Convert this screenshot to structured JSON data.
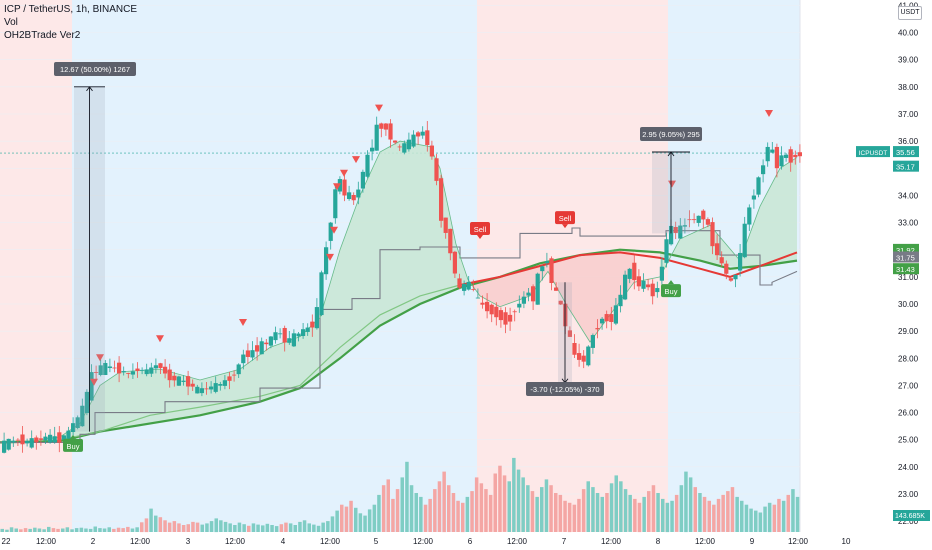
{
  "header": {
    "symbol_line": "ICP / TetherUS, 1h, BINANCE",
    "vol_label": "Vol",
    "indicator_label": "OH2BTrade Ver2",
    "currency": "USDT"
  },
  "colors": {
    "up": "#26a69a",
    "down": "#ef5350",
    "bg_buy": "#e3f2fd",
    "bg_sell": "#fde8e8",
    "ema_slow": "#43a047",
    "ema_red": "#e53935",
    "step_line": "#787b86",
    "cloud_green": "#c8e6d3",
    "cloud_red": "#f8cdcd",
    "axis_text": "#131722"
  },
  "chart_data": {
    "type": "candlestick",
    "ylim": [
      21.6,
      41.2
    ],
    "y_ticks": [
      22.0,
      23.0,
      24.0,
      25.0,
      26.0,
      27.0,
      28.0,
      29.0,
      30.0,
      31.0,
      32.0,
      33.0,
      34.0,
      35.0,
      36.0,
      37.0,
      38.0,
      39.0,
      40.0,
      41.0
    ],
    "x_ticks": [
      "22",
      "12:00",
      "2",
      "12:00",
      "3",
      "12:00",
      "4",
      "12:00",
      "5",
      "12:00",
      "6",
      "12:00",
      "7",
      "12:00",
      "8",
      "12:00",
      "9",
      "12:00",
      "10"
    ],
    "background_zones": [
      {
        "signal": "sell",
        "from": "22",
        "to": "1 18:00"
      },
      {
        "signal": "buy",
        "from": "1 18:00",
        "to": "6 03:00"
      },
      {
        "signal": "sell",
        "from": "6 03:00",
        "to": "8 06:00"
      },
      {
        "signal": "buy",
        "from": "8 06:00",
        "to": "9 12:00"
      }
    ],
    "price_path": [
      [
        0,
        24.7
      ],
      [
        10,
        24.9
      ],
      [
        20,
        25.0
      ],
      [
        30,
        24.9
      ],
      [
        40,
        25.0
      ],
      [
        50,
        25.1
      ],
      [
        60,
        25.0
      ],
      [
        70,
        25.2
      ],
      [
        75,
        25.6
      ],
      [
        80,
        25.7
      ],
      [
        88,
        26.4
      ],
      [
        92,
        27.2
      ],
      [
        96,
        27.5
      ],
      [
        100,
        27.6
      ],
      [
        110,
        27.7
      ],
      [
        120,
        27.6
      ],
      [
        130,
        27.4
      ],
      [
        140,
        27.6
      ],
      [
        150,
        27.5
      ],
      [
        160,
        27.8
      ],
      [
        165,
        27.6
      ],
      [
        170,
        27.3
      ],
      [
        180,
        27.2
      ],
      [
        190,
        27.1
      ],
      [
        200,
        26.8
      ],
      [
        210,
        26.9
      ],
      [
        220,
        27.0
      ],
      [
        230,
        27.2
      ],
      [
        240,
        27.6
      ],
      [
        245,
        28.2
      ],
      [
        250,
        28.1
      ],
      [
        260,
        28.4
      ],
      [
        270,
        28.6
      ],
      [
        280,
        29.0
      ],
      [
        290,
        28.6
      ],
      [
        300,
        28.9
      ],
      [
        310,
        29.1
      ],
      [
        318,
        29.4
      ],
      [
        322,
        30.5
      ],
      [
        326,
        31.6
      ],
      [
        330,
        32.4
      ],
      [
        334,
        33.3
      ],
      [
        338,
        34.3
      ],
      [
        342,
        34.6
      ],
      [
        346,
        34.0
      ],
      [
        350,
        34.1
      ],
      [
        356,
        33.8
      ],
      [
        362,
        34.4
      ],
      [
        368,
        35.2
      ],
      [
        374,
        35.8
      ],
      [
        378,
        36.4
      ],
      [
        382,
        36.6
      ],
      [
        388,
        36.5
      ],
      [
        394,
        36.1
      ],
      [
        400,
        35.7
      ],
      [
        406,
        35.8
      ],
      [
        412,
        36.0
      ],
      [
        418,
        36.2
      ],
      [
        424,
        36.4
      ],
      [
        430,
        35.9
      ],
      [
        436,
        35.2
      ],
      [
        440,
        34.3
      ],
      [
        444,
        33.0
      ],
      [
        450,
        32.5
      ],
      [
        456,
        31.3
      ],
      [
        462,
        30.5
      ],
      [
        468,
        30.8
      ],
      [
        474,
        30.6
      ],
      [
        480,
        30.1
      ],
      [
        490,
        29.8
      ],
      [
        500,
        29.6
      ],
      [
        510,
        29.3
      ],
      [
        518,
        29.9
      ],
      [
        524,
        30.1
      ],
      [
        530,
        30.5
      ],
      [
        536,
        30.2
      ],
      [
        542,
        31.3
      ],
      [
        548,
        31.8
      ],
      [
        552,
        31.1
      ],
      [
        556,
        30.6
      ],
      [
        562,
        30.0
      ],
      [
        566,
        29.5
      ],
      [
        570,
        29.0
      ],
      [
        576,
        28.1
      ],
      [
        582,
        28.0
      ],
      [
        588,
        27.9
      ],
      [
        594,
        28.8
      ],
      [
        600,
        29.2
      ],
      [
        606,
        29.6
      ],
      [
        612,
        29.3
      ],
      [
        618,
        29.8
      ],
      [
        624,
        30.5
      ],
      [
        628,
        31.0
      ],
      [
        634,
        31.4
      ],
      [
        640,
        30.6
      ],
      [
        646,
        30.8
      ],
      [
        652,
        30.5
      ],
      [
        658,
        30.3
      ],
      [
        662,
        31.0
      ],
      [
        668,
        32.3
      ],
      [
        674,
        32.8
      ],
      [
        680,
        32.6
      ],
      [
        686,
        32.9
      ],
      [
        692,
        33.2
      ],
      [
        698,
        33.0
      ],
      [
        704,
        33.4
      ],
      [
        710,
        32.9
      ],
      [
        716,
        32.1
      ],
      [
        722,
        31.6
      ],
      [
        728,
        31.2
      ],
      [
        734,
        30.7
      ],
      [
        740,
        31.4
      ],
      [
        746,
        32.6
      ],
      [
        750,
        33.4
      ],
      [
        756,
        34.1
      ],
      [
        760,
        34.5
      ],
      [
        764,
        34.9
      ],
      [
        768,
        35.7
      ],
      [
        772,
        35.9
      ],
      [
        776,
        35.4
      ],
      [
        780,
        35.1
      ],
      [
        786,
        35.6
      ],
      [
        792,
        35.3
      ],
      [
        797,
        35.5
      ]
    ],
    "series": [
      {
        "kind": "ema_slow",
        "points": [
          [
            0,
            24.9
          ],
          [
            60,
            24.95
          ],
          [
            100,
            25.3
          ],
          [
            200,
            25.9
          ],
          [
            260,
            26.4
          ],
          [
            300,
            26.9
          ],
          [
            340,
            28.0
          ],
          [
            380,
            29.2
          ],
          [
            420,
            30.0
          ],
          [
            460,
            30.6
          ],
          [
            500,
            31.0
          ],
          [
            540,
            31.5
          ],
          [
            580,
            31.8
          ],
          [
            620,
            32.0
          ],
          [
            660,
            31.9
          ],
          [
            700,
            31.6
          ],
          [
            730,
            31.3
          ],
          [
            760,
            31.4
          ],
          [
            797,
            31.6
          ]
        ]
      },
      {
        "kind": "ema_mid",
        "points": [
          [
            60,
            25.0
          ],
          [
            100,
            25.3
          ],
          [
            150,
            25.9
          ],
          [
            200,
            26.2
          ],
          [
            260,
            26.6
          ],
          [
            300,
            27.0
          ],
          [
            340,
            28.4
          ],
          [
            380,
            29.6
          ],
          [
            420,
            30.3
          ],
          [
            460,
            30.7
          ]
        ]
      },
      {
        "kind": "ema_red",
        "points": [
          [
            460,
            30.7
          ],
          [
            500,
            31.0
          ],
          [
            540,
            31.4
          ],
          [
            580,
            31.8
          ],
          [
            620,
            31.9
          ],
          [
            660,
            31.7
          ],
          [
            700,
            31.3
          ],
          [
            730,
            31.0
          ],
          [
            760,
            31.4
          ],
          [
            797,
            31.9
          ]
        ]
      },
      {
        "kind": "step_line",
        "points": [
          [
            0,
            24.9
          ],
          [
            80,
            24.9
          ],
          [
            80,
            25.2
          ],
          [
            95,
            25.2
          ],
          [
            95,
            26.0
          ],
          [
            165,
            26.0
          ],
          [
            165,
            26.4
          ],
          [
            260,
            26.4
          ],
          [
            260,
            26.9
          ],
          [
            320,
            26.9
          ],
          [
            320,
            29.8
          ],
          [
            352,
            29.8
          ],
          [
            352,
            30.2
          ],
          [
            380,
            30.2
          ],
          [
            380,
            32.0
          ],
          [
            420,
            32.0
          ],
          [
            420,
            32.1
          ],
          [
            460,
            32.1
          ],
          [
            460,
            31.7
          ],
          [
            520,
            31.7
          ],
          [
            520,
            32.6
          ],
          [
            572,
            32.6
          ],
          [
            572,
            32.8
          ],
          [
            580,
            32.8
          ],
          [
            580,
            32.5
          ],
          [
            666,
            32.5
          ],
          [
            666,
            32.7
          ],
          [
            720,
            32.7
          ],
          [
            720,
            31.8
          ],
          [
            760,
            31.8
          ],
          [
            760,
            30.7
          ],
          [
            772,
            30.7
          ],
          [
            772,
            30.8
          ],
          [
            797,
            31.2
          ]
        ]
      },
      {
        "kind": "fast_line",
        "points": [
          [
            40,
            25.0
          ],
          [
            60,
            25.1
          ],
          [
            80,
            25.6
          ],
          [
            100,
            27.0
          ],
          [
            120,
            27.5
          ],
          [
            160,
            27.6
          ],
          [
            200,
            27.2
          ],
          [
            240,
            27.6
          ],
          [
            270,
            28.4
          ],
          [
            300,
            28.8
          ],
          [
            320,
            29.5
          ],
          [
            340,
            32.0
          ],
          [
            360,
            34.0
          ],
          [
            380,
            35.6
          ],
          [
            400,
            36.0
          ],
          [
            430,
            35.8
          ],
          [
            440,
            35.0
          ],
          [
            456,
            32.2
          ],
          [
            468,
            30.9
          ],
          [
            480,
            30.3
          ],
          [
            500,
            29.9
          ],
          [
            530,
            30.3
          ],
          [
            548,
            31.2
          ],
          [
            566,
            30.0
          ],
          [
            590,
            28.6
          ],
          [
            610,
            29.6
          ],
          [
            634,
            30.8
          ],
          [
            660,
            31.0
          ],
          [
            680,
            32.4
          ],
          [
            710,
            32.9
          ],
          [
            740,
            31.6
          ],
          [
            760,
            33.6
          ],
          [
            780,
            35.0
          ],
          [
            797,
            35.4
          ]
        ]
      }
    ],
    "volume": {
      "axis_max": 300,
      "label": "143.685K",
      "bars": [
        8,
        6,
        12,
        9,
        7,
        10,
        8,
        11,
        9,
        7,
        13,
        10,
        8,
        9,
        12,
        7,
        10,
        11,
        9,
        8,
        14,
        10,
        9,
        12,
        8,
        11,
        10,
        13,
        9,
        12,
        25,
        35,
        60,
        42,
        38,
        30,
        24,
        28,
        22,
        18,
        20,
        26,
        24,
        19,
        22,
        28,
        35,
        30,
        26,
        22,
        18,
        24,
        20,
        16,
        22,
        19,
        17,
        21,
        18,
        15,
        20,
        24,
        22,
        18,
        26,
        30,
        22,
        19,
        16,
        24,
        28,
        40,
        55,
        70,
        65,
        80,
        62,
        48,
        42,
        58,
        70,
        95,
        120,
        135,
        85,
        110,
        140,
        180,
        120,
        100,
        90,
        70,
        85,
        110,
        130,
        155,
        120,
        100,
        80,
        75,
        90,
        105,
        140,
        125,
        110,
        95,
        150,
        170,
        145,
        130,
        190,
        160,
        140,
        120,
        105,
        90,
        115,
        135,
        120,
        100,
        95,
        80,
        75,
        70,
        85,
        110,
        130,
        115,
        100,
        90,
        100,
        125,
        145,
        130,
        110,
        95,
        85,
        75,
        90,
        105,
        120,
        100,
        85,
        75,
        80,
        95,
        120,
        155,
        140,
        115,
        100,
        90,
        80,
        70,
        85,
        95,
        105,
        115,
        90,
        80,
        70,
        60,
        55,
        50,
        65,
        75,
        70,
        85,
        80,
        95,
        110,
        90
      ]
    },
    "price_labels": [
      {
        "text": "ICPUSDT",
        "value": 35.56,
        "color": "#26a69a"
      },
      {
        "text": "35.56",
        "value": 35.56,
        "color": "#26a69a"
      },
      {
        "text": "35.17",
        "value": 35.17,
        "color": "#26a69a"
      },
      {
        "text": "31.92",
        "value": 31.92,
        "color": "#43a047"
      },
      {
        "text": "31.75",
        "value": 31.75,
        "color": "#787b86"
      },
      {
        "text": "31.43",
        "value": 31.43,
        "color": "#43a047"
      }
    ],
    "measurements": [
      {
        "text": "12.67 (50.00%) 1267",
        "from": 25.3,
        "to": 38.0,
        "color": "#787b86"
      },
      {
        "text": "2.95 (9.05%) 295",
        "from": 32.6,
        "to": 35.6,
        "color": "#787b86"
      },
      {
        "text": "-3.70 (-12.05%) -370",
        "from": 30.8,
        "to": 27.1,
        "color": "#787b86"
      }
    ],
    "signals": [
      {
        "label": "Buy",
        "type": "buy",
        "value": 24.7
      },
      {
        "label": "Sell",
        "type": "sell",
        "value": 32.8
      },
      {
        "label": "Sell",
        "type": "sell",
        "value": 33.2
      },
      {
        "label": "Buy",
        "type": "buy",
        "value": 30.4
      }
    ],
    "arrows_down": [
      [
        94,
        27.1
      ],
      [
        100,
        28.0
      ],
      [
        160,
        28.7
      ],
      [
        243,
        29.3
      ],
      [
        337,
        34.3
      ],
      [
        344,
        34.8
      ],
      [
        356,
        35.3
      ],
      [
        379,
        37.2
      ],
      [
        334,
        32.7
      ],
      [
        330,
        31.7
      ],
      [
        672,
        34.4
      ],
      [
        769,
        37.0
      ]
    ],
    "arrows_up": [
      [
        578,
        27.0
      ]
    ]
  }
}
